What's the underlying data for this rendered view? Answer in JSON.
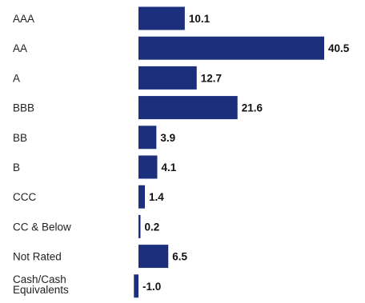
{
  "chart_data": {
    "type": "bar",
    "orientation": "horizontal",
    "categories": [
      "AAA",
      "AA",
      "A",
      "BBB",
      "BB",
      "B",
      "CCC",
      "CC & Below",
      "Not Rated",
      "Cash/Cash Equivalents"
    ],
    "values": [
      10.1,
      40.5,
      12.7,
      21.6,
      3.9,
      4.1,
      1.4,
      0.2,
      6.5,
      -1.0
    ],
    "value_labels": [
      "10.1",
      "40.5",
      "12.7",
      "21.6",
      "3.9",
      "4.1",
      "1.4",
      "0.2",
      "6.5",
      "-1.0"
    ],
    "title": "",
    "xlabel": "",
    "ylabel": "",
    "xlim": [
      -1.0,
      40.5
    ],
    "grid": false,
    "legend": "none",
    "bar_color": "#1b2f7c"
  }
}
